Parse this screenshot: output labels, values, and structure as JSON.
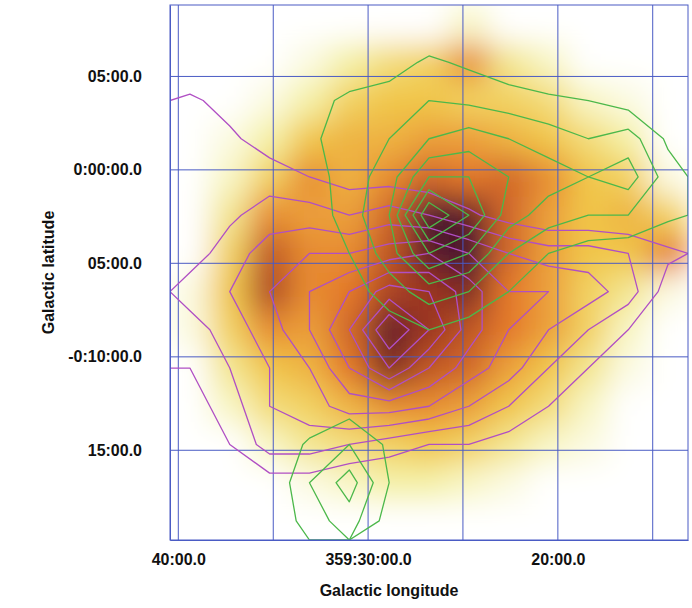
{
  "chart_data": {
    "type": "contour",
    "x_label": "Galactic longitude",
    "y_label": "Galactic latitude",
    "xlim": [
      359.674,
      359.219
    ],
    "ylim": [
      -0.33,
      0.147
    ],
    "xticks": [
      {
        "value": 359.6667,
        "label": "40:00.0"
      },
      {
        "value": 359.5,
        "label": "359:30:00.0"
      },
      {
        "value": 359.3333,
        "label": "20:00.0"
      }
    ],
    "yticks": [
      {
        "value": 0.0833,
        "label": "05:00.0"
      },
      {
        "value": 0,
        "label": "0:00:00.0"
      },
      {
        "value": -0.0833,
        "label": "05:00.0"
      },
      {
        "value": -0.1667,
        "label": "-0:10:00.0"
      },
      {
        "value": -0.25,
        "label": "15:00.0"
      }
    ],
    "x_gridlines": [
      359.5833,
      359.4167,
      359.25
    ],
    "grid": true,
    "image": {
      "values": [
        [
          0,
          0,
          0,
          0,
          0,
          0,
          0,
          0.1,
          0,
          0,
          0,
          0,
          0
        ],
        [
          0,
          0,
          0,
          0.05,
          0.15,
          0.25,
          0.3,
          0.5,
          0.2,
          0.1,
          0,
          0,
          0
        ],
        [
          0,
          0,
          0.05,
          0.15,
          0.3,
          0.35,
          0.35,
          0.3,
          0.3,
          0.25,
          0.1,
          0.05,
          0
        ],
        [
          0,
          0.05,
          0.15,
          0.35,
          0.4,
          0.4,
          0.45,
          0.45,
          0.4,
          0.35,
          0.25,
          0.15,
          0
        ],
        [
          0,
          0.1,
          0.3,
          0.5,
          0.4,
          0.5,
          0.6,
          0.55,
          0.6,
          0.5,
          0.35,
          0.3,
          0.05
        ],
        [
          0,
          0.2,
          0.5,
          0.45,
          0.45,
          0.6,
          0.9,
          0.85,
          0.6,
          0.45,
          0.35,
          0.4,
          0.3
        ],
        [
          0,
          0.3,
          0.65,
          0.5,
          0.5,
          0.65,
          0.85,
          0.9,
          0.6,
          0.45,
          0.35,
          0.35,
          0.55
        ],
        [
          0.05,
          0.35,
          0.7,
          0.5,
          0.55,
          0.7,
          0.75,
          0.8,
          0.55,
          0.45,
          0.3,
          0.2,
          0.05
        ],
        [
          0.05,
          0.3,
          0.5,
          0.45,
          0.6,
          0.85,
          0.75,
          0.65,
          0.55,
          0.45,
          0.3,
          0.1,
          0
        ],
        [
          0,
          0.2,
          0.35,
          0.4,
          0.55,
          0.8,
          0.65,
          0.6,
          0.45,
          0.35,
          0.2,
          0.05,
          0
        ],
        [
          0,
          0.1,
          0.25,
          0.3,
          0.4,
          0.5,
          0.5,
          0.45,
          0.35,
          0.25,
          0.1,
          0,
          0
        ],
        [
          0,
          0,
          0.1,
          0.2,
          0.25,
          0.3,
          0.35,
          0.3,
          0.2,
          0.1,
          0.05,
          0,
          0
        ],
        [
          0,
          0,
          0,
          0.05,
          0.1,
          0.15,
          0.15,
          0.1,
          0.05,
          0,
          0,
          0,
          0
        ],
        [
          0,
          0,
          0,
          0,
          0,
          0,
          0,
          0,
          0,
          0,
          0,
          0,
          0
        ]
      ]
    },
    "contours": [
      {
        "color": "#b04fc4",
        "levels": [
          1,
          2,
          3,
          4,
          5,
          6,
          7,
          8,
          9
        ],
        "values": [
          [
            0,
            0,
            0,
            0,
            0,
            0,
            0,
            0,
            0,
            0,
            0,
            0,
            0
          ],
          [
            0,
            0,
            0,
            0,
            0,
            0,
            0,
            0,
            0,
            0,
            0,
            0,
            0
          ],
          [
            1.2,
            0.6,
            0,
            0,
            0,
            0,
            0,
            0,
            0,
            0,
            0,
            0,
            0
          ],
          [
            1.5,
            1.2,
            0.5,
            0,
            0,
            0,
            0,
            0,
            0,
            0,
            0,
            0,
            0
          ],
          [
            1.3,
            1.5,
            1.5,
            1,
            0.5,
            0.5,
            0.3,
            0,
            0,
            0,
            0,
            0,
            0
          ],
          [
            1.2,
            1.8,
            2.5,
            2.5,
            2,
            2.5,
            2,
            1.2,
            0.5,
            0,
            0,
            0,
            0
          ],
          [
            1.5,
            2.5,
            3.5,
            4,
            4,
            4.5,
            5,
            4,
            3,
            2.5,
            2.5,
            2,
            1.2
          ],
          [
            2.5,
            3,
            4,
            5,
            6,
            7.5,
            7,
            5.5,
            4,
            4,
            3.5,
            2.5,
            0.5
          ],
          [
            1.5,
            2.5,
            3.5,
            5,
            7,
            10,
            8,
            5.5,
            4,
            3,
            2,
            1,
            0
          ],
          [
            1,
            2,
            3,
            4,
            6,
            8,
            6,
            4.5,
            3.5,
            2,
            1,
            0,
            0
          ],
          [
            0.5,
            1.5,
            3,
            3.5,
            4.5,
            4.5,
            4,
            3,
            2,
            1,
            0.5,
            0,
            0
          ],
          [
            0,
            1,
            2.5,
            2.5,
            2,
            1.5,
            1,
            1,
            0.5,
            0,
            0,
            0,
            0
          ],
          [
            0,
            0,
            0.5,
            0.5,
            0,
            0,
            0,
            0,
            0,
            0,
            0,
            0,
            0
          ],
          [
            0,
            0,
            0,
            0,
            0,
            0,
            0,
            0,
            0,
            0,
            0,
            0,
            0
          ]
        ]
      },
      {
        "color": "#4cb84a",
        "levels": [
          1,
          2,
          3,
          4,
          5,
          6,
          7,
          8
        ],
        "values": [
          [
            0,
            0,
            0,
            0,
            0,
            0,
            0,
            0,
            0,
            0,
            0,
            0,
            0
          ],
          [
            0,
            0,
            0,
            0,
            0,
            0.5,
            1.2,
            0.8,
            0.3,
            0,
            0,
            0,
            0
          ],
          [
            0,
            0,
            0,
            0.5,
            1.3,
            1.5,
            2,
            1.8,
            1.5,
            1.2,
            1,
            0.5,
            0
          ],
          [
            0,
            0,
            0,
            0.8,
            1.5,
            2,
            3,
            3.5,
            3,
            2.5,
            2,
            2.5,
            0.8
          ],
          [
            0,
            0,
            0,
            0.5,
            1.5,
            2.5,
            5,
            5,
            4,
            3.5,
            3,
            3.5,
            1.5
          ],
          [
            0,
            0,
            0,
            0.3,
            1.5,
            3,
            8,
            6,
            3.5,
            2.5,
            2,
            2,
            1.2
          ],
          [
            0,
            0,
            0,
            0,
            1,
            2.5,
            5,
            4,
            2,
            1,
            0.5,
            0.3,
            0
          ],
          [
            0,
            0,
            0,
            0,
            0.5,
            1.5,
            2.5,
            2,
            1,
            0,
            0,
            0,
            0
          ],
          [
            0,
            0,
            0,
            0,
            0,
            0.5,
            1,
            0.5,
            0,
            0,
            0,
            0,
            0
          ],
          [
            0,
            0,
            0,
            0,
            0,
            0,
            0,
            0,
            0,
            0,
            0,
            0,
            0
          ],
          [
            0,
            0,
            0,
            0,
            0.5,
            0,
            0,
            0,
            0,
            0,
            0,
            0,
            0
          ],
          [
            0,
            0,
            0,
            1.2,
            2,
            0.8,
            0,
            0,
            0,
            0,
            0,
            0,
            0
          ],
          [
            0,
            0,
            0,
            2,
            3.5,
            1,
            0,
            0,
            0,
            0,
            0,
            0,
            0
          ],
          [
            0,
            0,
            0,
            1.5,
            2.5,
            0.5,
            0,
            0,
            0,
            0,
            0,
            0,
            0
          ]
        ]
      }
    ]
  }
}
